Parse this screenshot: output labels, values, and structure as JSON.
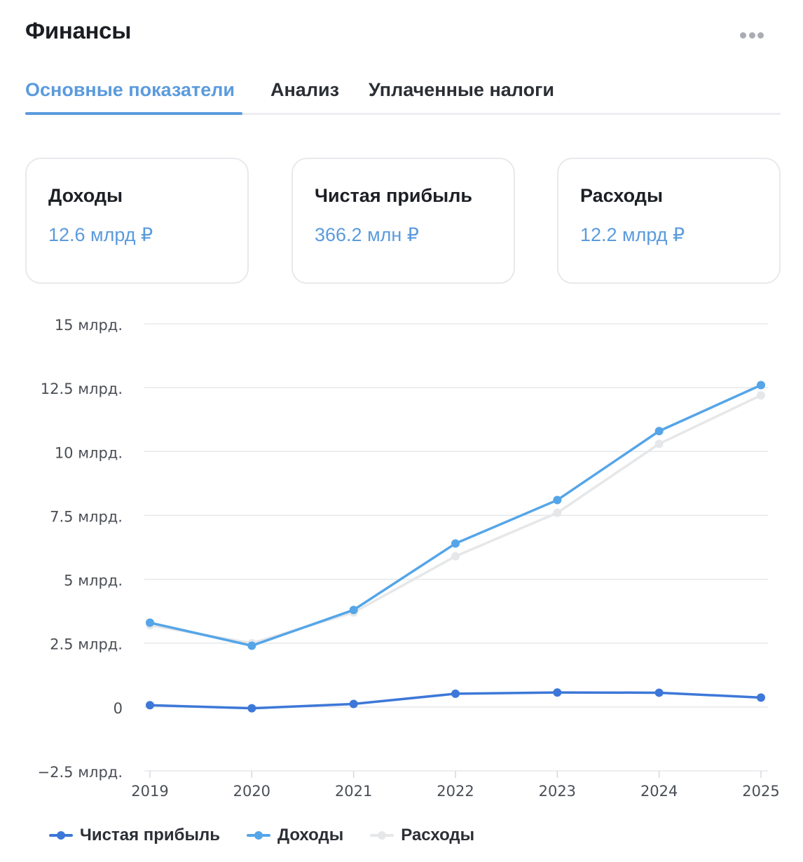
{
  "header": {
    "title": "Финансы"
  },
  "more_icon": "more-horizontal-icon",
  "tabs": [
    {
      "label": "Основные показатели",
      "active": true
    },
    {
      "label": "Анализ",
      "active": false
    },
    {
      "label": "Уплаченные налоги",
      "active": false
    }
  ],
  "cards": [
    {
      "label": "Доходы",
      "value": "12.6 млрд ₽"
    },
    {
      "label": "Чистая прибыль",
      "value": "366.2 млн ₽"
    },
    {
      "label": "Расходы",
      "value": "12.2 млрд ₽"
    }
  ],
  "colors": {
    "accent": "#5b9bdd",
    "net_profit": "#3d78d8",
    "income": "#55a5e8",
    "expenses": "#e6e7e9",
    "grid": "#e6e8eb"
  },
  "chart_data": {
    "type": "line",
    "x": [
      "2019",
      "2020",
      "2021",
      "2022",
      "2023",
      "2024",
      "2025"
    ],
    "ylim": [
      -2.5,
      15
    ],
    "y_ticks": [
      {
        "value": 15,
        "label": "15 млрд."
      },
      {
        "value": 12.5,
        "label": "12.5 млрд."
      },
      {
        "value": 10,
        "label": "10 млрд."
      },
      {
        "value": 7.5,
        "label": "7.5 млрд."
      },
      {
        "value": 5,
        "label": "5 млрд."
      },
      {
        "value": 2.5,
        "label": "2.5 млрд."
      },
      {
        "value": 0,
        "label": "0"
      },
      {
        "value": -2.5,
        "label": "−2.5 млрд."
      }
    ],
    "grid": true,
    "legend_position": "bottom-left",
    "series": [
      {
        "name": "Расходы",
        "color": "#e6e7e9",
        "values": [
          3.2,
          2.5,
          3.7,
          5.9,
          7.6,
          10.3,
          12.2
        ]
      },
      {
        "name": "Доходы",
        "color": "#55a5e8",
        "values": [
          3.3,
          2.4,
          3.8,
          6.4,
          8.1,
          10.8,
          12.6
        ]
      },
      {
        "name": "Чистая прибыль",
        "color": "#3d78d8",
        "values": [
          0.07,
          -0.05,
          0.12,
          0.52,
          0.57,
          0.56,
          0.37
        ]
      }
    ],
    "legend": [
      "Чистая прибыль",
      "Доходы",
      "Расходы"
    ]
  }
}
